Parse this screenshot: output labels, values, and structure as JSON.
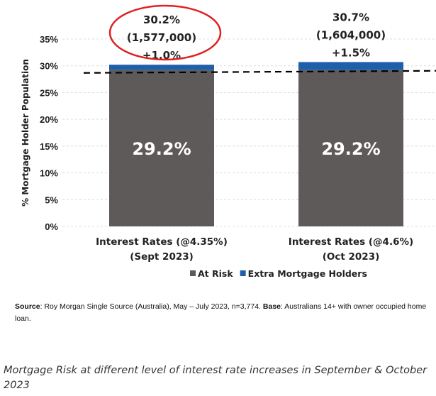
{
  "chart_data": {
    "type": "bar",
    "stacked": true,
    "ylabel": "% Mortgage Holder Population",
    "ylim": [
      0,
      35
    ],
    "yticks": [
      "0%",
      "5%",
      "10%",
      "15%",
      "20%",
      "25%",
      "30%",
      "35%"
    ],
    "grid": true,
    "categories": [
      [
        "Interest Rates (@4.35%)",
        "(Sept 2023)"
      ],
      [
        "Interest Rates   (@4.6%)",
        "(Oct 2023)"
      ]
    ],
    "series": [
      {
        "name": "At Risk",
        "values": [
          29.2,
          29.2
        ],
        "color": "#5f5a5a",
        "labels": [
          "29.2%",
          "29.2%"
        ]
      },
      {
        "name": "Extra Mortgage Holders",
        "values": [
          1.0,
          1.5
        ],
        "color": "#1f5ea8",
        "labels": [
          "+1.0%",
          "+1.5%"
        ]
      }
    ],
    "total_labels": [
      [
        "30.2%",
        "(1,577,000)"
      ],
      [
        "30.7%",
        "(1,604,000)"
      ]
    ],
    "reference_line": {
      "value": 29.2,
      "style": "dashed",
      "color": "#000000"
    },
    "highlight": {
      "category_index": 0,
      "shape": "ellipse",
      "color": "#e02020"
    },
    "legend": "bottom"
  },
  "source": {
    "label1": "Source",
    "text1": ": Roy Morgan Single Source (Australia), May – July 2023, n=3,774. ",
    "label2": "Base",
    "text2": ": Australians 14+ with owner occupied home loan."
  },
  "caption": "Mortgage Risk at different level of interest rate increases in September & October 2023"
}
